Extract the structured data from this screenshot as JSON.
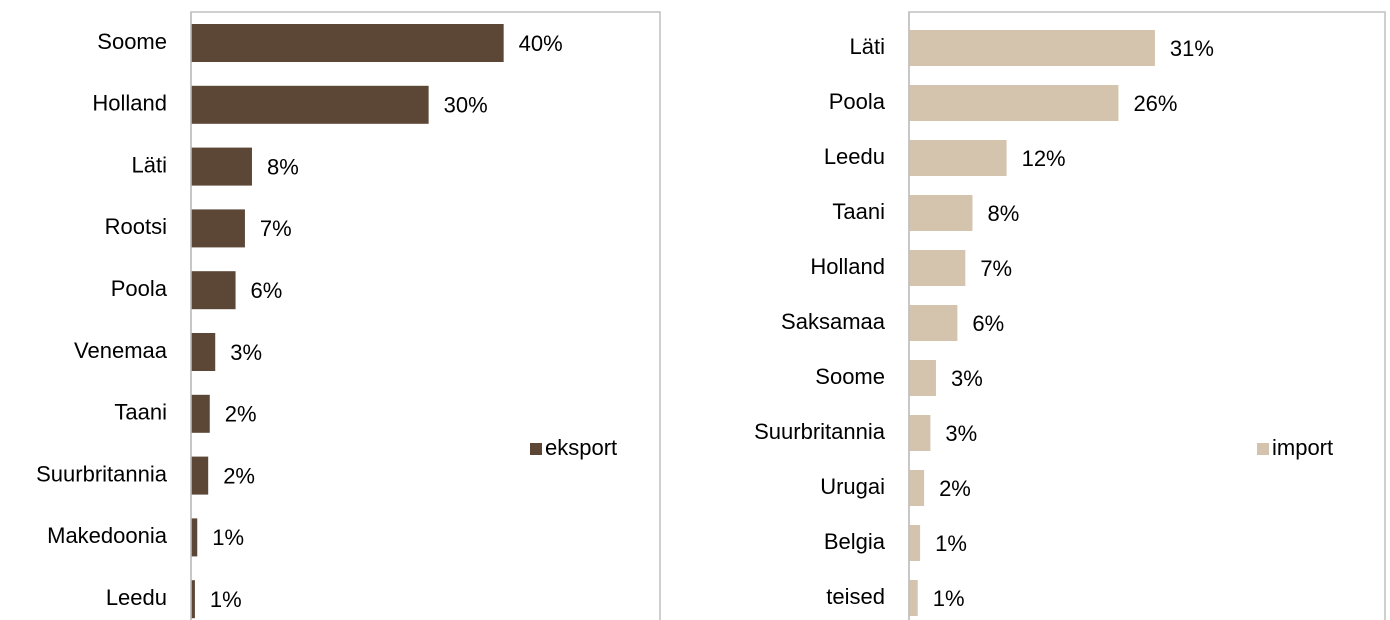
{
  "chart_data": [
    {
      "type": "bar",
      "orientation": "horizontal",
      "categories": [
        "Soome",
        "Holland",
        "Läti",
        "Rootsi",
        "Poola",
        "Venemaa",
        "Taani",
        "Suurbritannia",
        "Makedoonia",
        "Leedu"
      ],
      "series": [
        {
          "name": "eksport",
          "color": "#5c4636",
          "values": [
            40,
            30.4,
            7.8,
            6.9,
            5.7,
            3.1,
            2.4,
            2.2,
            0.8,
            0.5
          ],
          "value_labels": [
            "40%",
            "30%",
            "8%",
            "7%",
            "6%",
            "3%",
            "2%",
            "2%",
            "1%",
            "1%"
          ]
        }
      ],
      "xlim": [
        0,
        60
      ],
      "legend": "right"
    },
    {
      "type": "bar",
      "orientation": "horizontal",
      "categories": [
        "Läti",
        "Poola",
        "Leedu",
        "Taani",
        "Holland",
        "Saksamaa",
        "Soome",
        "Suurbritannia",
        "Urugai",
        "Belgia",
        "teised"
      ],
      "series": [
        {
          "name": "import",
          "color": "#d5c4ad",
          "values": [
            31,
            26.4,
            12.3,
            8,
            7.1,
            6.1,
            3.4,
            2.7,
            1.9,
            1.4,
            1.1
          ],
          "value_labels": [
            "31%",
            "26%",
            "12%",
            "8%",
            "7%",
            "6%",
            "3%",
            "3%",
            "2%",
            "1%",
            "1%"
          ]
        }
      ],
      "xlim": [
        0,
        60
      ],
      "legend": "right"
    }
  ]
}
